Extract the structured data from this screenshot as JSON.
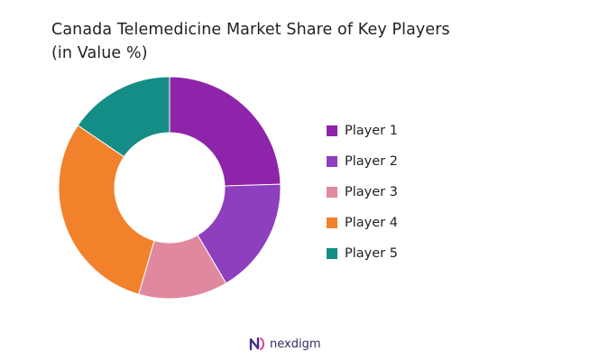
{
  "chart_data": {
    "type": "pie",
    "donut": true,
    "title": [
      "Canada Telemedicine Market Share of Key Players",
      "(in Value %)"
    ],
    "categories": [
      "Player 1",
      "Player 2",
      "Player 3",
      "Player 4",
      "Player 5"
    ],
    "values": [
      24.5,
      17,
      13,
      30,
      15.5
    ],
    "colors": [
      "#8e24aa",
      "#8e3fbe",
      "#e0899e",
      "#f2812b",
      "#138d85"
    ],
    "legend_position": "right"
  },
  "brand": {
    "text": "nexdigm",
    "logo": "nexdigm-logo-icon"
  }
}
